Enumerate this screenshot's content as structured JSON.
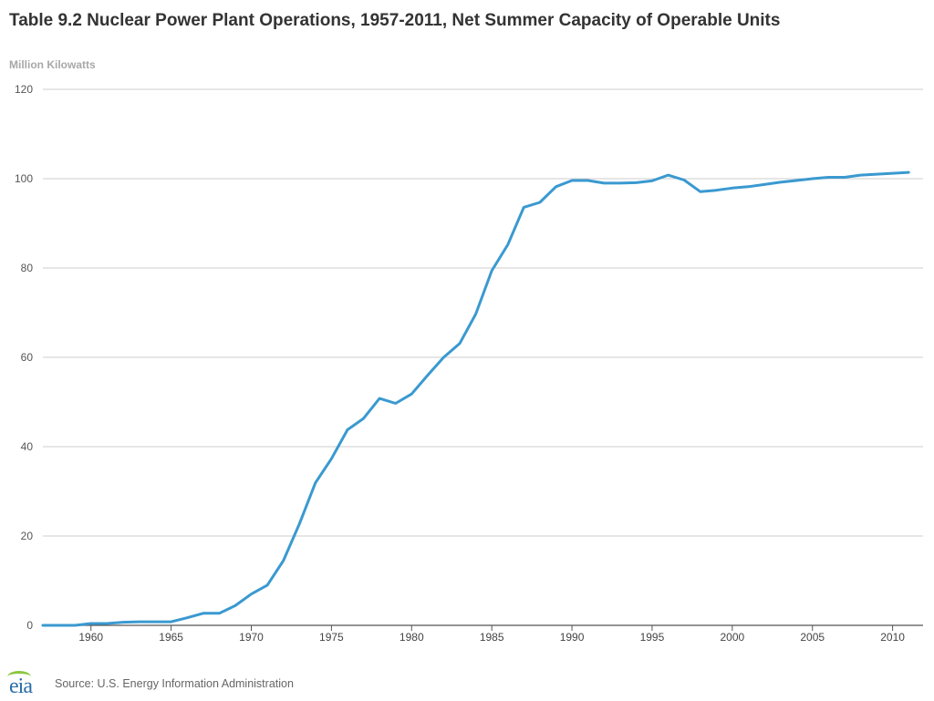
{
  "chart_data": {
    "type": "line",
    "title": "Table 9.2 Nuclear Power Plant Operations, 1957-2011, Net Summer Capacity of Operable Units",
    "ylabel": "Million Kilowatts",
    "xlabel": "",
    "ylim": [
      0,
      120
    ],
    "xlim": [
      1957,
      2011
    ],
    "yticks": [
      0,
      20,
      40,
      60,
      80,
      100,
      120
    ],
    "xticks": [
      1960,
      1965,
      1970,
      1975,
      1980,
      1985,
      1990,
      1995,
      2000,
      2005,
      2010
    ],
    "grid": true,
    "source": "Source: U.S. Energy Information Administration",
    "logo_text": "eia",
    "series": [
      {
        "name": "Net Summer Capacity",
        "color": "#3a99d0",
        "x": [
          1957,
          1958,
          1959,
          1960,
          1961,
          1962,
          1963,
          1964,
          1965,
          1966,
          1967,
          1968,
          1969,
          1970,
          1971,
          1972,
          1973,
          1974,
          1975,
          1976,
          1977,
          1978,
          1979,
          1980,
          1981,
          1982,
          1983,
          1984,
          1985,
          1986,
          1987,
          1988,
          1989,
          1990,
          1991,
          1992,
          1993,
          1994,
          1995,
          1996,
          1997,
          1998,
          1999,
          2000,
          2001,
          2002,
          2003,
          2004,
          2005,
          2006,
          2007,
          2008,
          2009,
          2010,
          2011
        ],
        "values": [
          0.0,
          0.0,
          0.0,
          0.4,
          0.4,
          0.7,
          0.8,
          0.8,
          0.8,
          1.7,
          2.7,
          2.7,
          4.4,
          7.0,
          9.0,
          14.5,
          22.7,
          31.9,
          37.3,
          43.8,
          46.3,
          50.8,
          49.7,
          51.8,
          56.0,
          60.0,
          63.1,
          69.7,
          79.4,
          85.2,
          93.6,
          94.7,
          98.2,
          99.6,
          99.6,
          99.0,
          99.0,
          99.1,
          99.5,
          100.8,
          99.7,
          97.1,
          97.4,
          97.9,
          98.2,
          98.7,
          99.2,
          99.6,
          100.0,
          100.3,
          100.3,
          100.8,
          101.0,
          101.2,
          101.4
        ]
      }
    ]
  }
}
